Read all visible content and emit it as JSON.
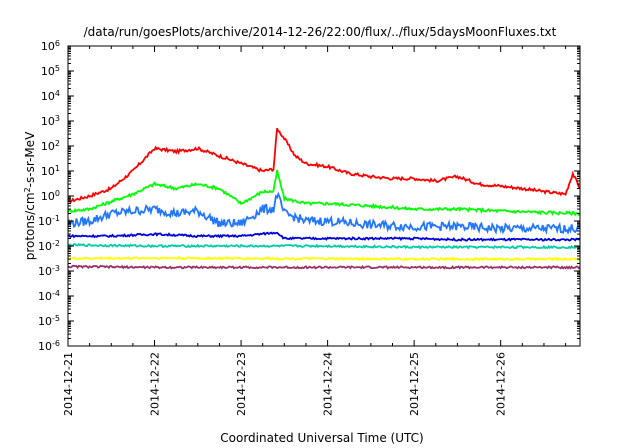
{
  "chart_data": {
    "type": "line",
    "title": "/data/run/goesPlots/archive/2014-12-26/22:00/flux/../flux/5daysMoonFluxes.txt",
    "xlabel": "Coordinated Universal Time (UTC)",
    "ylabel": {
      "base": "protons/cm",
      "sup": "2",
      "rest": "-s-sr-MeV"
    },
    "y_scale": "log",
    "ylim_exp": [
      -6,
      6
    ],
    "y_ticks": [
      {
        "base": "10",
        "exp": "-6"
      },
      {
        "base": "10",
        "exp": "-5"
      },
      {
        "base": "10",
        "exp": "-4"
      },
      {
        "base": "10",
        "exp": "-3"
      },
      {
        "base": "10",
        "exp": "-2"
      },
      {
        "base": "10",
        "exp": "-1"
      },
      {
        "base": "10",
        "exp": "0"
      },
      {
        "base": "10",
        "exp": "1"
      },
      {
        "base": "10",
        "exp": "2"
      },
      {
        "base": "10",
        "exp": "3"
      },
      {
        "base": "10",
        "exp": "4"
      },
      {
        "base": "10",
        "exp": "5"
      },
      {
        "base": "10",
        "exp": "6"
      }
    ],
    "x_ticks": [
      "2014-12-21",
      "2014-12-22",
      "2014-12-23",
      "2014-12-24",
      "2014-12-25",
      "2014-12-26"
    ],
    "xlim": [
      "2014-12-21",
      "2014-12-26 22:00"
    ],
    "grid": false,
    "legend": "none",
    "series": [
      {
        "color": "#ff0000",
        "x": [
          "2014-12-21 00:00",
          "2014-12-21 06:00",
          "2014-12-21 12:00",
          "2014-12-21 18:00",
          "2014-12-22 00:00",
          "2014-12-22 06:00",
          "2014-12-22 12:00",
          "2014-12-22 18:00",
          "2014-12-23 00:00",
          "2014-12-23 06:00",
          "2014-12-23 09:00",
          "2014-12-23 10:00",
          "2014-12-23 12:00",
          "2014-12-23 15:00",
          "2014-12-23 18:00",
          "2014-12-24 00:00",
          "2014-12-24 06:00",
          "2014-12-24 12:00",
          "2014-12-24 18:00",
          "2014-12-25 00:00",
          "2014-12-25 06:00",
          "2014-12-25 12:00",
          "2014-12-25 18:00",
          "2014-12-26 00:00",
          "2014-12-26 06:00",
          "2014-12-26 12:00",
          "2014-12-26 18:00",
          "2014-12-26 20:00",
          "2014-12-26 22:00"
        ],
        "y": [
          0.6,
          1.0,
          2.0,
          10,
          80,
          60,
          80,
          40,
          20,
          10,
          12,
          500,
          200,
          40,
          20,
          15,
          8,
          6,
          5,
          5,
          4,
          6,
          3,
          2.5,
          2,
          1.5,
          1.2,
          8,
          2
        ]
      },
      {
        "color": "#00ff00",
        "x": [
          "2014-12-21 00:00",
          "2014-12-21 06:00",
          "2014-12-21 12:00",
          "2014-12-21 18:00",
          "2014-12-22 00:00",
          "2014-12-22 06:00",
          "2014-12-22 12:00",
          "2014-12-22 18:00",
          "2014-12-23 00:00",
          "2014-12-23 06:00",
          "2014-12-23 09:00",
          "2014-12-23 10:00",
          "2014-12-23 12:00",
          "2014-12-23 18:00",
          "2014-12-24 00:00",
          "2014-12-24 12:00",
          "2014-12-25 00:00",
          "2014-12-25 12:00",
          "2014-12-26 00:00",
          "2014-12-26 12:00",
          "2014-12-26 22:00"
        ],
        "y": [
          0.25,
          0.3,
          0.6,
          1.2,
          3,
          2,
          3,
          2,
          0.5,
          1.5,
          1.5,
          10,
          0.8,
          0.5,
          0.5,
          0.4,
          0.3,
          0.3,
          0.25,
          0.22,
          0.2
        ]
      },
      {
        "color": "#2277ff",
        "x": [
          "2014-12-21 00:00",
          "2014-12-21 06:00",
          "2014-12-21 12:00",
          "2014-12-21 18:00",
          "2014-12-22 00:00",
          "2014-12-22 06:00",
          "2014-12-22 12:00",
          "2014-12-22 18:00",
          "2014-12-23 00:00",
          "2014-12-23 06:00",
          "2014-12-23 09:00",
          "2014-12-23 10:00",
          "2014-12-23 12:00",
          "2014-12-23 18:00",
          "2014-12-24 00:00",
          "2014-12-24 12:00",
          "2014-12-25 00:00",
          "2014-12-25 12:00",
          "2014-12-26 00:00",
          "2014-12-26 12:00",
          "2014-12-26 22:00"
        ],
        "y": [
          0.08,
          0.1,
          0.2,
          0.25,
          0.3,
          0.2,
          0.25,
          0.08,
          0.08,
          0.3,
          0.3,
          1.2,
          0.2,
          0.1,
          0.1,
          0.07,
          0.06,
          0.06,
          0.05,
          0.05,
          0.05
        ]
      },
      {
        "color": "#0000dd",
        "x": [
          "2014-12-21 00:00",
          "2014-12-21 12:00",
          "2014-12-22 00:00",
          "2014-12-22 12:00",
          "2014-12-23 00:00",
          "2014-12-23 10:00",
          "2014-12-23 12:00",
          "2014-12-24 00:00",
          "2014-12-24 12:00",
          "2014-12-25 00:00",
          "2014-12-25 12:00",
          "2014-12-26 00:00",
          "2014-12-26 22:00"
        ],
        "y": [
          0.025,
          0.025,
          0.03,
          0.025,
          0.025,
          0.035,
          0.02,
          0.02,
          0.02,
          0.02,
          0.018,
          0.018,
          0.018
        ]
      },
      {
        "color": "#00ccaa",
        "x": [
          "2014-12-21 00:00",
          "2014-12-22 00:00",
          "2014-12-23 00:00",
          "2014-12-24 00:00",
          "2014-12-25 00:00",
          "2014-12-26 00:00",
          "2014-12-26 22:00"
        ],
        "y": [
          0.011,
          0.01,
          0.01,
          0.01,
          0.009,
          0.009,
          0.009
        ]
      },
      {
        "color": "#ffff00",
        "x": [
          "2014-12-21 00:00",
          "2014-12-22 00:00",
          "2014-12-23 00:00",
          "2014-12-24 00:00",
          "2014-12-25 00:00",
          "2014-12-26 00:00",
          "2014-12-26 22:00"
        ],
        "y": [
          0.0032,
          0.0033,
          0.0032,
          0.0031,
          0.003,
          0.003,
          0.003
        ]
      },
      {
        "color": "#993366",
        "x": [
          "2014-12-21 00:00",
          "2014-12-22 00:00",
          "2014-12-23 00:00",
          "2014-12-24 00:00",
          "2014-12-25 00:00",
          "2014-12-26 00:00",
          "2014-12-26 22:00"
        ],
        "y": [
          0.0015,
          0.0014,
          0.0014,
          0.0014,
          0.0014,
          0.0014,
          0.0014
        ]
      }
    ]
  }
}
